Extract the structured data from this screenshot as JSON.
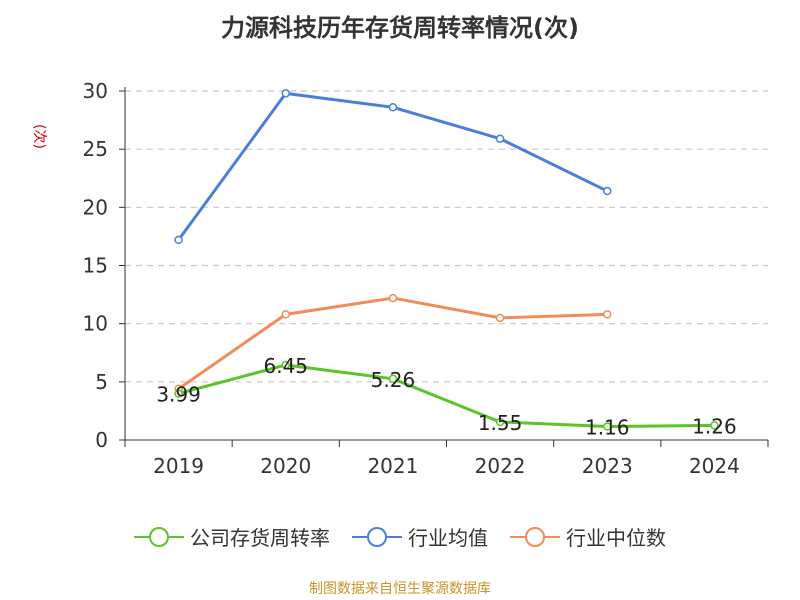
{
  "chart_data": {
    "type": "line",
    "title": "力源科技历年存货周转率情况(次)",
    "ylabel": "(次)",
    "xlabel": "",
    "categories": [
      "2019",
      "2020",
      "2021",
      "2022",
      "2023",
      "2024"
    ],
    "ylim": [
      0,
      30
    ],
    "yticks": [
      0,
      5,
      10,
      15,
      20,
      25,
      30
    ],
    "grid": "horizontal-dashed",
    "legend_position": "bottom",
    "series": [
      {
        "name": "公司存货周转率",
        "color": "#5ac42a",
        "values": [
          3.99,
          6.45,
          5.26,
          1.55,
          1.16,
          1.26
        ],
        "data_labels": [
          "3.99",
          "6.45",
          "5.26",
          "1.55",
          "1.16",
          "1.26"
        ]
      },
      {
        "name": "行业均值",
        "color": "#4a7fd8",
        "values": [
          17.2,
          29.8,
          28.6,
          25.9,
          21.4,
          null
        ]
      },
      {
        "name": "行业中位数",
        "color": "#f08c5a",
        "values": [
          4.4,
          10.8,
          12.2,
          10.5,
          10.8,
          null
        ]
      }
    ],
    "source": "制图数据来自恒生聚源数据库"
  }
}
